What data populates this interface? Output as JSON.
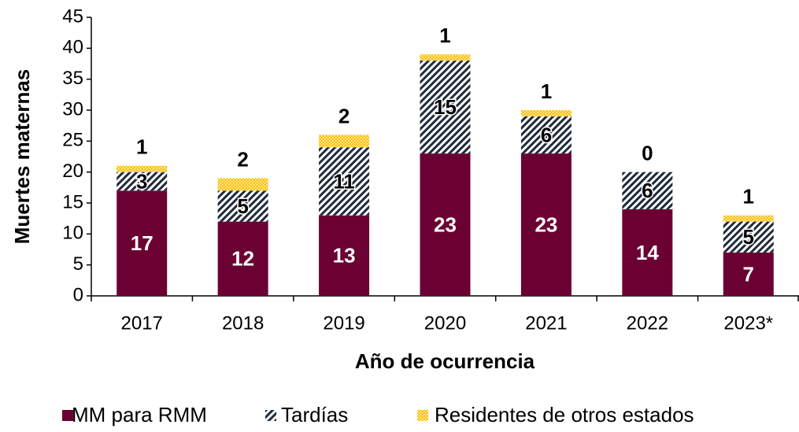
{
  "chart_data": {
    "type": "stacked_bar",
    "x_label": "Año de ocurrencia",
    "y_label": "Muertes maternas",
    "categories": [
      "2017",
      "2018",
      "2019",
      "2020",
      "2021",
      "2022",
      "2023*"
    ],
    "series": [
      {
        "name": "MM para RMM",
        "color": "#6b0032",
        "pattern": "solid",
        "values": [
          17,
          12,
          13,
          23,
          23,
          14,
          7
        ]
      },
      {
        "name": "Tardías",
        "color": "#1f2a3a",
        "pattern": "hatch",
        "values": [
          3,
          5,
          11,
          15,
          6,
          6,
          5
        ]
      },
      {
        "name": "Residentes de otros estados",
        "color": "#ffc000",
        "pattern": "dots",
        "values": [
          1,
          2,
          2,
          1,
          1,
          0,
          1
        ]
      }
    ],
    "ylim": [
      0,
      45
    ],
    "yticks": [
      0,
      5,
      10,
      15,
      20,
      25,
      30,
      35,
      40,
      45
    ]
  }
}
